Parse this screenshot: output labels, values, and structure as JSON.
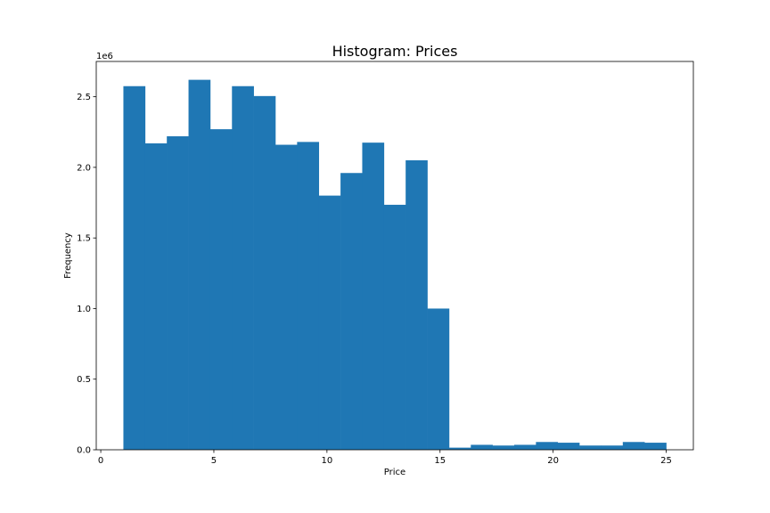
{
  "chart_data": {
    "type": "bar",
    "title": "Histogram: Prices",
    "xlabel": "Price",
    "ylabel": "Frequency",
    "y_offset_label": "1e6",
    "xlim": [
      -0.2,
      26.2
    ],
    "ylim": [
      0,
      2.75
    ],
    "xticks": [
      0,
      5,
      10,
      15,
      20,
      25
    ],
    "xtick_labels": [
      "0",
      "5",
      "10",
      "15",
      "20",
      "25"
    ],
    "yticks": [
      0,
      0.5,
      1.0,
      1.5,
      2.0,
      2.5
    ],
    "ytick_labels": [
      "0.0",
      "0.5",
      "1.0",
      "1.5",
      "2.0",
      "2.5"
    ],
    "bin_edges": [
      1,
      1.96,
      2.92,
      3.88,
      4.84,
      5.8,
      6.76,
      7.72,
      8.68,
      9.64,
      10.6,
      11.56,
      12.52,
      13.48,
      14.44,
      15.4,
      16.36,
      17.32,
      18.28,
      19.24,
      20.2,
      21.16,
      22.12,
      23.08,
      24.04,
      25
    ],
    "values": [
      2.575,
      2.17,
      2.22,
      2.62,
      2.27,
      2.575,
      2.505,
      2.16,
      2.18,
      1.8,
      1.96,
      2.175,
      1.735,
      2.05,
      1.0,
      0.015,
      0.035,
      0.03,
      0.035,
      0.055,
      0.05,
      0.03,
      0.03,
      0.055,
      0.05
    ],
    "bar_color": "#1f77b4",
    "grid": false
  }
}
